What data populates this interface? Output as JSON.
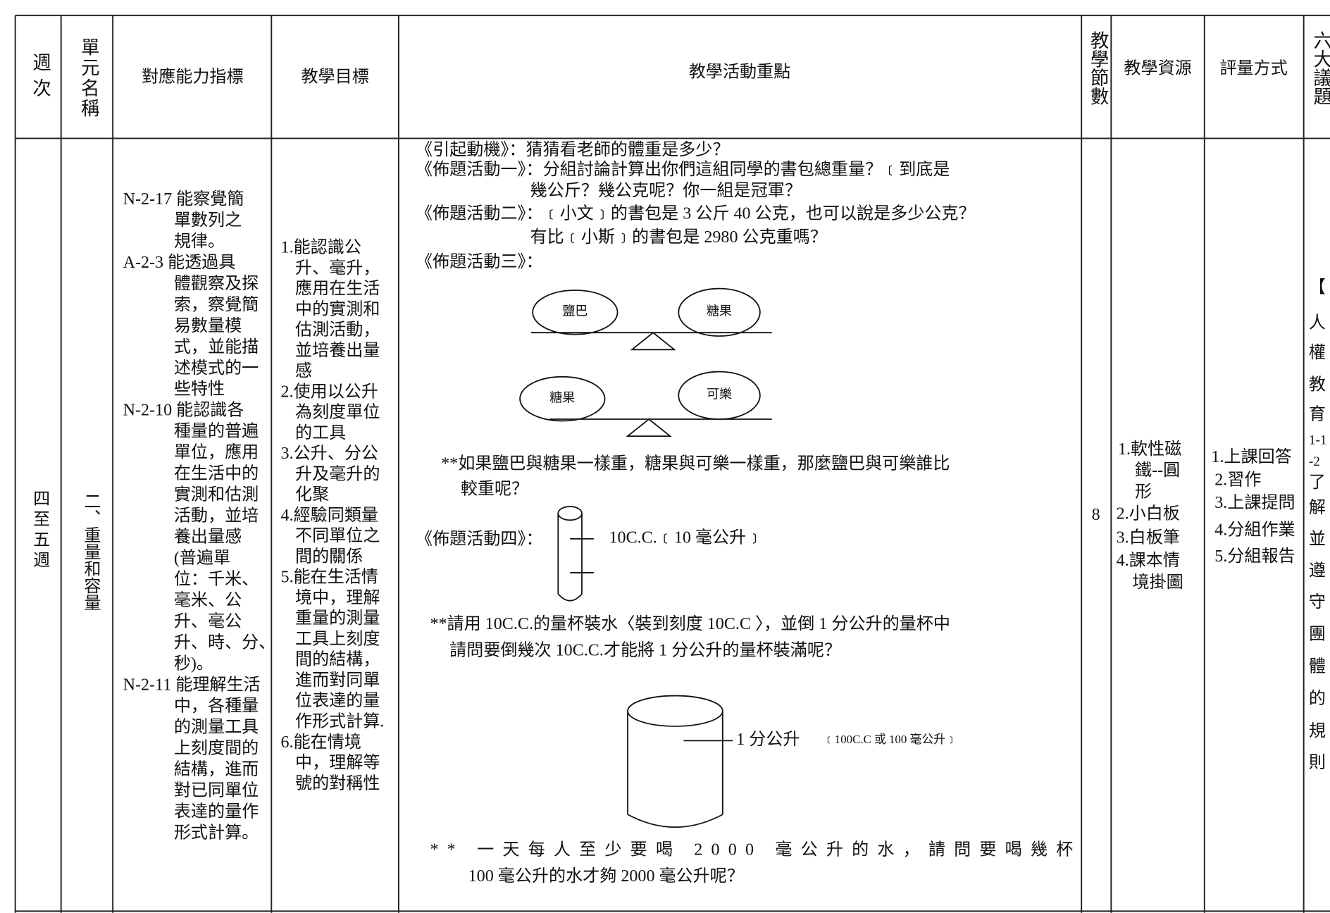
{
  "table": {
    "headers": [
      "週次",
      "單元名稱",
      "對應能力指標",
      "教學目標",
      "教學活動重點",
      "教學節數",
      "教學資源",
      "評量方式",
      "六大議題"
    ],
    "row": {
      "week": "四至五週",
      "unit": "二、重量和容量",
      "indicators": [
        "N-2-17 能察覺簡",
        "單數列之",
        "規律。",
        "A-2-3  能透過具",
        "體觀察及探",
        "索，察覺簡",
        "易數量模",
        "式，並能描",
        "述模式的一",
        "些特性",
        "N-2-10 能認識各",
        "種量的普遍",
        "單位，應用",
        "在生活中的",
        "實測和估測",
        "活動，並培",
        "養出量感",
        "(普遍單",
        "位：千米、",
        "毫米、公",
        "升、毫公",
        "升、時、分、",
        "秒)。",
        "N-2-11 能理解生活",
        "中，各種量",
        "的測量工具",
        "上刻度間的",
        "結構，進而",
        "對已同單位",
        "表達的量作",
        "形式計算。"
      ],
      "objectives": [
        "1.能認識公",
        "升、毫升，",
        "應用在生活",
        "中的實測和",
        "估測活動，",
        "並培養出量",
        "感",
        "2.使用以公升",
        "為刻度單位",
        "的工具",
        "3.公升、分公",
        "升及毫升的",
        "化聚",
        "4.經驗同類量",
        "不同單位之",
        "間的關係",
        "5.能在生活情",
        "境中，理解",
        "重量的測量",
        "工具上刻度",
        "間的結構，",
        "進而對同單",
        "位表達的量",
        "作形式計算.",
        "6.能在情境",
        "中，理解等",
        "號的對稱性"
      ],
      "activities": [
        "《引起動機》：猜猜看老師的體重是多少？",
        "《佈題活動一》：分組討論計算出你們這組同學的書包總重量？﹝到底是",
        "幾公斤？幾公克呢？你一組是冠軍？",
        "《佈題活動二》：﹝小文﹞的書包是 3 公斤 40 公克，也可以說是多少公克？",
        "有比﹝小斯﹞的書包是 2980 公克重嗎？",
        "《佈題活動三》：",
        "**如果鹽巴與糖果一樣重，糖果與可樂一樣重，那麼鹽巴與可樂誰比",
        "較重呢？",
        "《佈題活動四》：",
        "10C.C.﹝10 毫公升﹞",
        "**請用 10C.C.的量杯裝水〈裝到刻度 10C.C 〉，並倒 1 分公升的量杯中",
        "請問要倒幾次 10C.C.才能將 1 分公升的量杯裝滿呢？",
        "1 分公升",
        "﹝100C.C 或 100 毫公升﹞",
        "** 一天每人至少要喝 2000 毫公升的水，請問要喝幾杯",
        "100 毫公升的水才夠 2000 毫公升呢？"
      ],
      "scale_labels": [
        "鹽巴",
        "糖果",
        "糖果",
        "可樂"
      ],
      "periods": "8",
      "resources": [
        "1.軟性磁",
        "鐵--圓",
        "形",
        "2.小白板",
        "3.白板筆",
        "4.課本情",
        "境掛圖"
      ],
      "assessment": [
        "1.上課回答",
        "2.習作",
        "3.上課提問",
        "4.分組作業",
        "5.分組報告"
      ],
      "issues": [
        "【",
        "人",
        "權",
        "教",
        "育",
        "1-1",
        "-2",
        "了",
        "解",
        "並",
        "遵",
        "守",
        "團",
        "體",
        "的",
        "規",
        "則"
      ]
    }
  }
}
